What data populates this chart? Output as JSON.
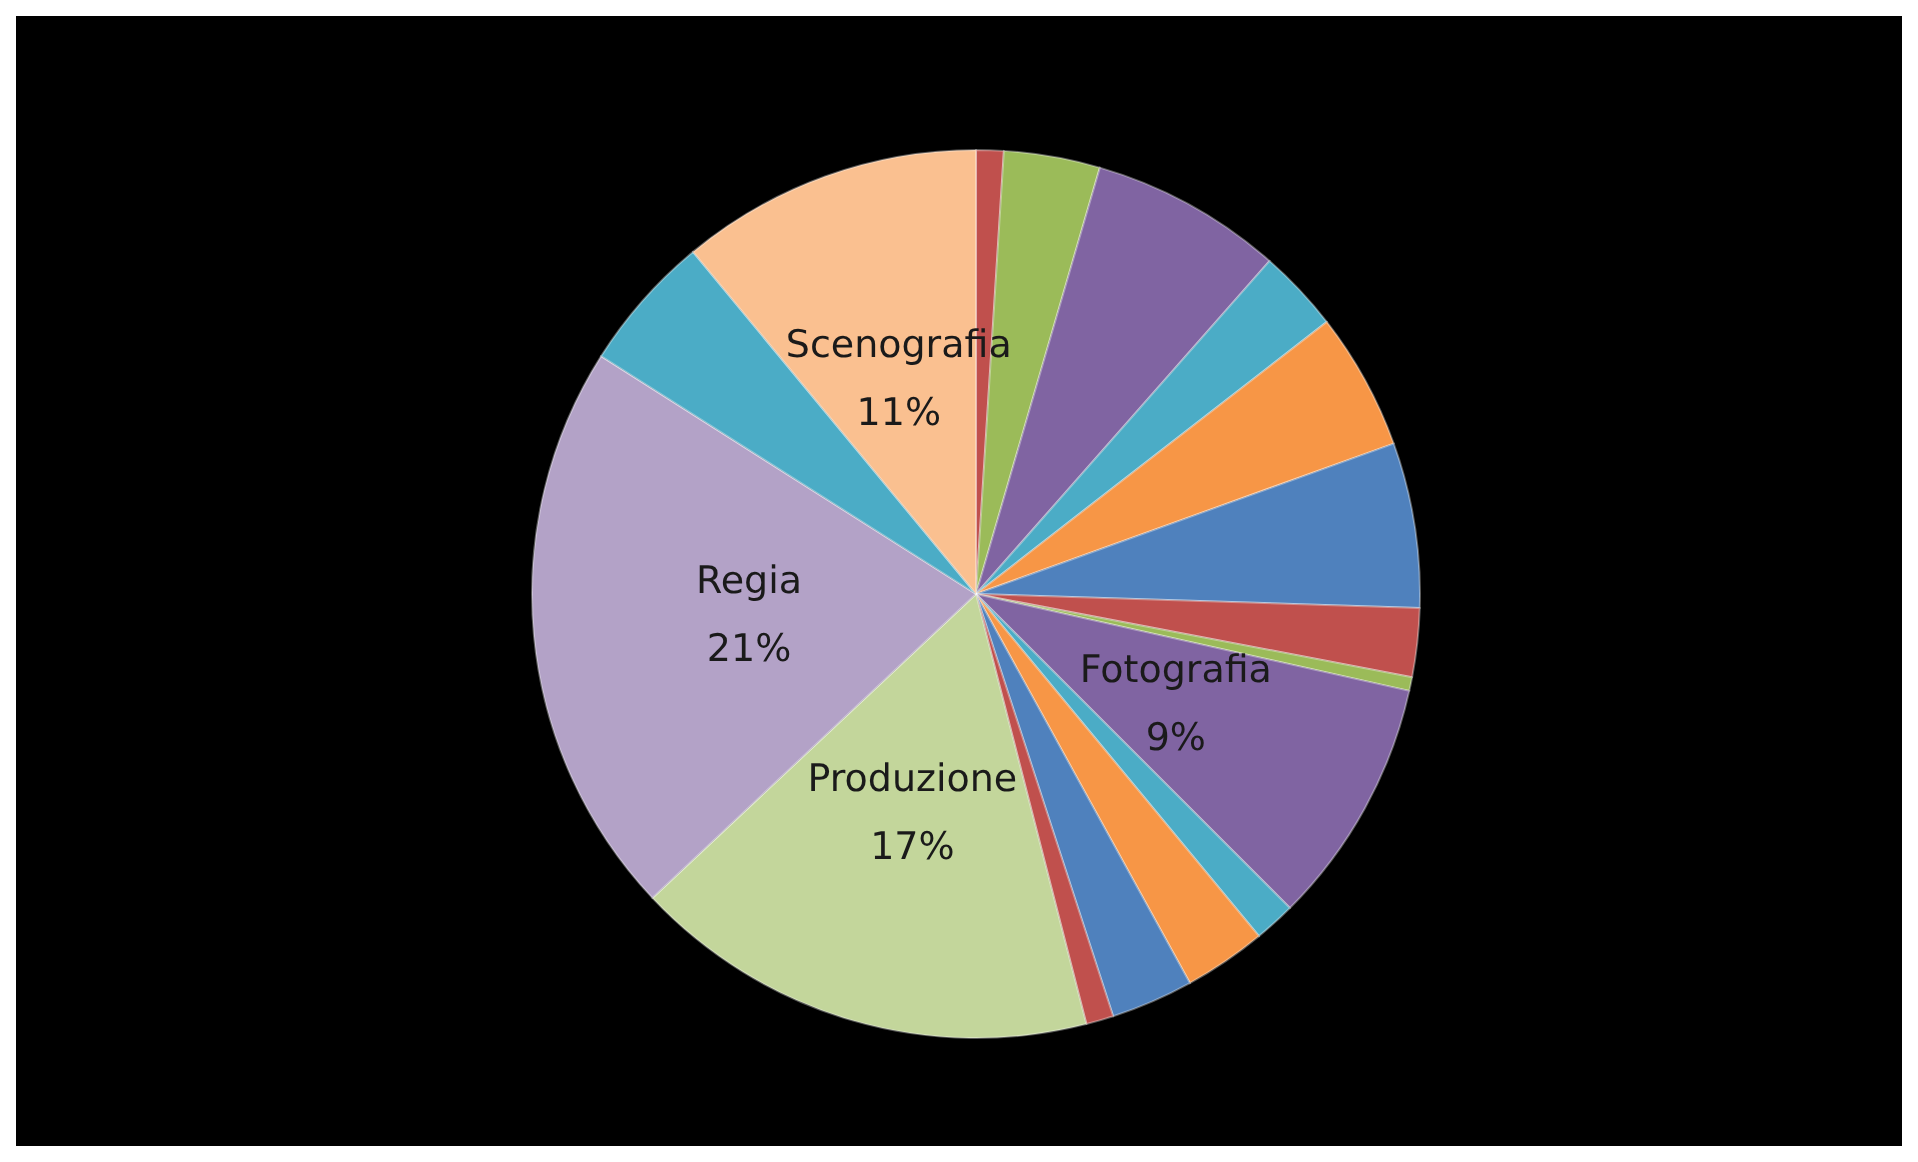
{
  "chart_data": {
    "type": "pie",
    "categories": [
      null,
      null,
      null,
      null,
      null,
      null,
      null,
      null,
      "Fotografia",
      null,
      null,
      null,
      null,
      "Produzione",
      "Regia",
      null,
      "Scenografia"
    ],
    "values": [
      1,
      3.5,
      7,
      3,
      5,
      6,
      2.5,
      0.5,
      9,
      1.5,
      3,
      3,
      1,
      17,
      21,
      5,
      11
    ],
    "value_labels": [
      null,
      null,
      null,
      null,
      null,
      null,
      null,
      null,
      "9%",
      null,
      null,
      null,
      null,
      "17%",
      "21%",
      null,
      "11%"
    ],
    "colors": [
      "#c0504d",
      "#9bbb59",
      "#8064a2",
      "#4bacc6",
      "#f79646",
      "#4f81bd",
      "#c0504d",
      "#9bbb59",
      "#8064a2",
      "#4bacc6",
      "#f79646",
      "#4f81bd",
      "#c0504d",
      "#c3d69b",
      "#b3a2c7",
      "#4bacc6",
      "#fac090"
    ],
    "legend": false
  }
}
